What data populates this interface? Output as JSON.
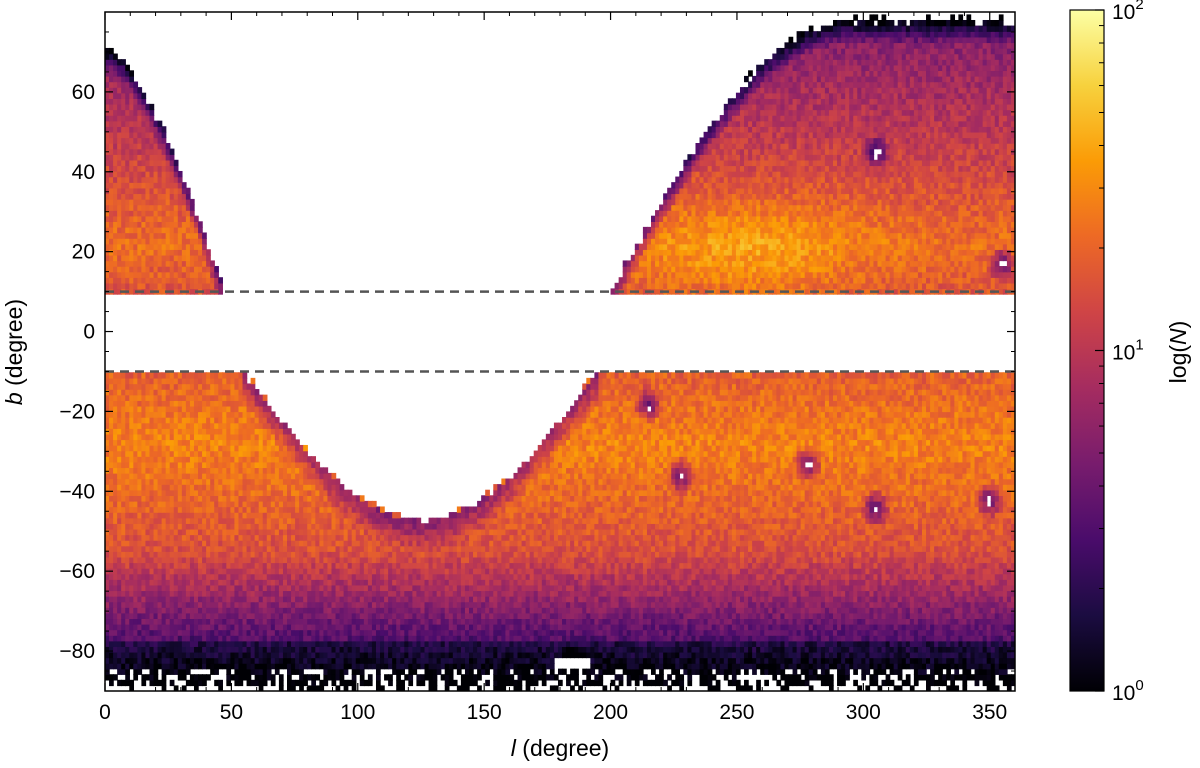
{
  "chart_data": {
    "type": "heatmap",
    "title": "",
    "xlabel": {
      "symbol": "l",
      "unit": " (degree)"
    },
    "ylabel": {
      "symbol": "b",
      "unit": " (degree)"
    },
    "xlim": [
      0,
      360
    ],
    "ylim": [
      -90,
      80
    ],
    "x_ticks": [
      0,
      50,
      100,
      150,
      200,
      250,
      300,
      350
    ],
    "y_ticks": [
      -80,
      -60,
      -40,
      -20,
      0,
      20,
      40,
      60
    ],
    "masked_band": {
      "b_min": -10,
      "b_max": 10,
      "boundary_style": "dashed",
      "color": "#555555"
    },
    "colorbar": {
      "label": {
        "prefix": "log(",
        "symbol": "N",
        "suffix": ")"
      },
      "scale": "log",
      "range": [
        1,
        100
      ],
      "tick_labels": [
        {
          "value": 100,
          "base": "10",
          "exp": "2"
        },
        {
          "value": 10,
          "base": "10",
          "exp": "1"
        },
        {
          "value": 1,
          "base": "10",
          "exp": "0"
        }
      ],
      "colormap": "inferno",
      "colors": [
        "#000004",
        "#1b0c41",
        "#4a0c6b",
        "#781c6d",
        "#a52c60",
        "#cf4446",
        "#ed6925",
        "#fb9b06",
        "#f7d13d",
        "#fcffa4"
      ]
    },
    "regions": [
      {
        "name": "north-left",
        "l_range": [
          0,
          47
        ],
        "b_range": [
          10,
          70
        ],
        "log_count_range": [
          0.8,
          1.6
        ]
      },
      {
        "name": "north-right",
        "l_range": [
          200,
          360
        ],
        "b_range": [
          10,
          78
        ],
        "log_count_range": [
          0.8,
          1.9
        ]
      },
      {
        "name": "south",
        "l_range": [
          0,
          360
        ],
        "b_range": [
          -90,
          -10
        ],
        "log_count_range": [
          0.3,
          1.7
        ]
      }
    ],
    "empty_regions": [
      {
        "name": "south-gap",
        "l_range": [
          55,
          195
        ],
        "b_min_approx": -47,
        "l_of_minimum": 130
      }
    ],
    "depleted_spots": [
      {
        "l": 278,
        "b": -33
      },
      {
        "l": 305,
        "b": -44
      },
      {
        "l": 350,
        "b": -42
      },
      {
        "l": 228,
        "b": -36
      },
      {
        "l": 305,
        "b": 45
      },
      {
        "l": 355,
        "b": 17
      },
      {
        "l": 215,
        "b": -18
      },
      {
        "l": 185,
        "b": -83
      }
    ]
  }
}
